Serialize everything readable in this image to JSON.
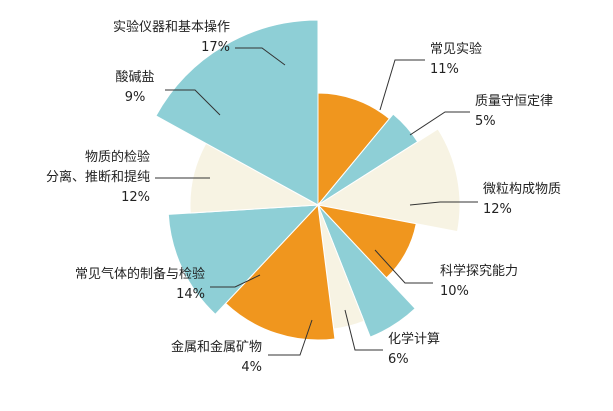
{
  "chart_data": {
    "type": "pie",
    "categories": [
      "常见实验",
      "质量守恒定律",
      "微粒构成物质",
      "科学探究能力",
      "化学计算",
      "金属和金属矿物",
      "常见气体的制备与检验",
      "物质的检验\n分离、推断和提纯",
      "酸碱盐",
      "实验仪器和基本操作"
    ],
    "values": [
      11,
      5,
      12,
      10,
      6,
      4,
      14,
      12,
      9,
      17
    ],
    "value_labels": [
      "11%",
      "5%",
      "12%",
      "10%",
      "6%",
      "4%",
      "14%",
      "12%",
      "9%",
      "17%"
    ],
    "colors": [
      "#f0961e",
      "#8ecfd6",
      "#f7f3e3",
      "#f0961e",
      "#8ecfd6",
      "#f7f3e3",
      "#f0961e",
      "#8ecfd6",
      "#f7f3e3",
      "#8ecfd6"
    ]
  }
}
